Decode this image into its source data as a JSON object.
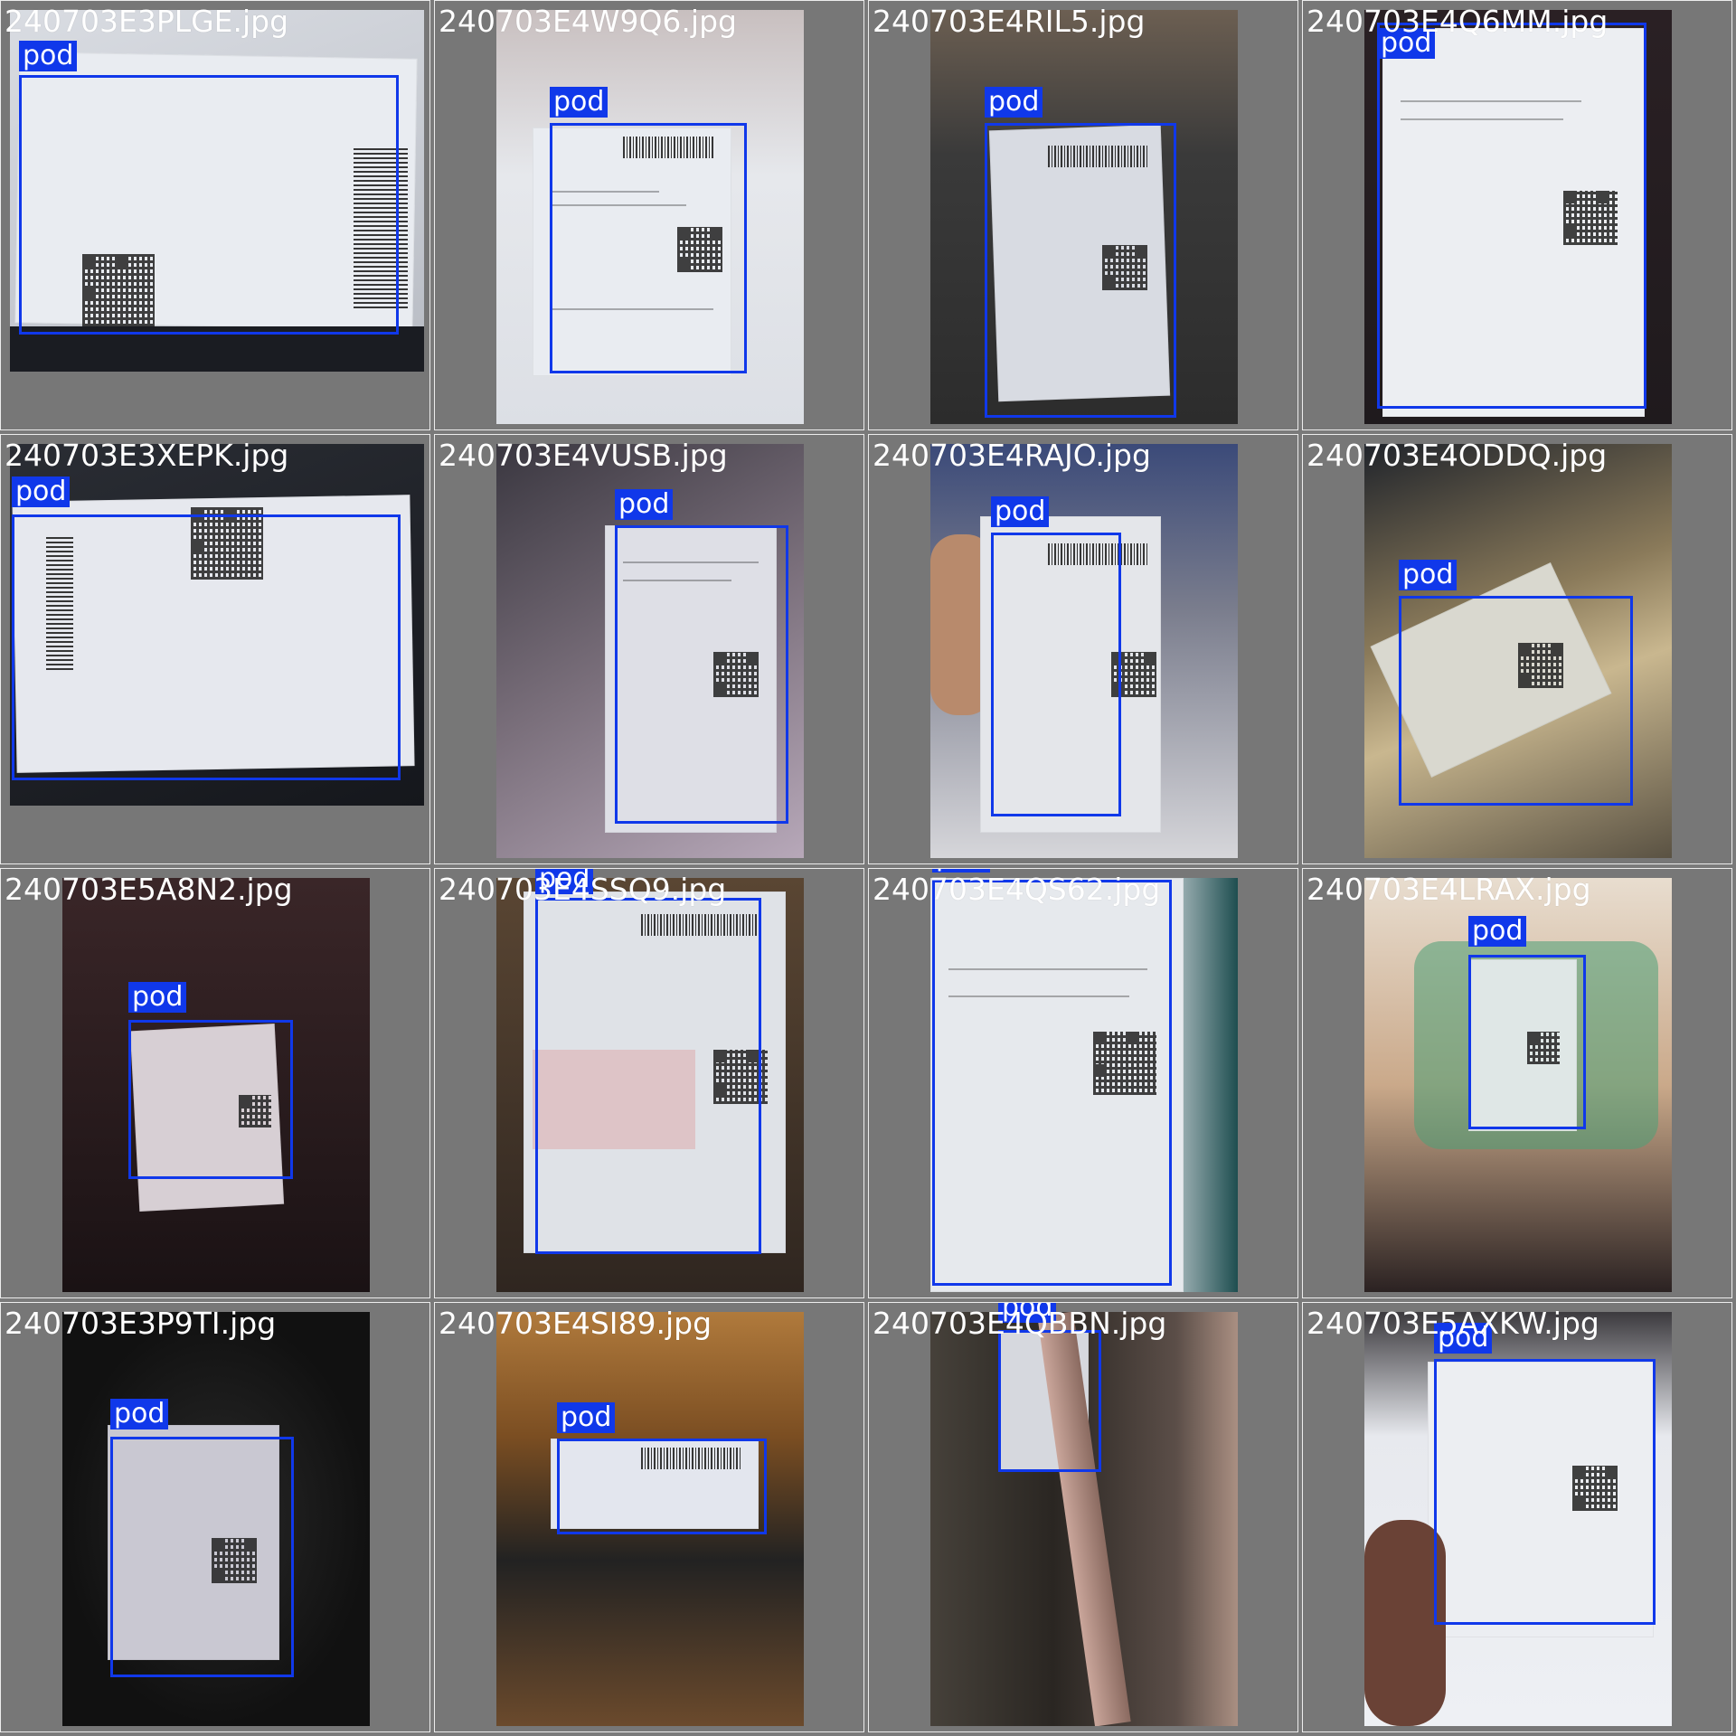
{
  "detection_label": "pod",
  "colors": {
    "box": "#1038ea",
    "tile_bg": "#777777",
    "grid_line": "#ececec"
  },
  "tiles": [
    {
      "filename": "240703E3PLGE.jpg"
    },
    {
      "filename": "240703E4W9Q6.jpg"
    },
    {
      "filename": "240703E4RIL5.jpg"
    },
    {
      "filename": "240703E4Q6MM.jpg"
    },
    {
      "filename": "240703E3XEPK.jpg"
    },
    {
      "filename": "240703E4VUSB.jpg"
    },
    {
      "filename": "240703E4RAJO.jpg"
    },
    {
      "filename": "240703E4ODDQ.jpg"
    },
    {
      "filename": "240703E5A8N2.jpg"
    },
    {
      "filename": "240703E4SSQ9.jpg"
    },
    {
      "filename": "240703E4QS62.jpg"
    },
    {
      "filename": "240703E4LRAX.jpg"
    },
    {
      "filename": "240703E3P9TI.jpg"
    },
    {
      "filename": "240703E4SI89.jpg"
    },
    {
      "filename": "240703E4QBBN.jpg"
    },
    {
      "filename": "240703E5AXKW.jpg"
    }
  ]
}
